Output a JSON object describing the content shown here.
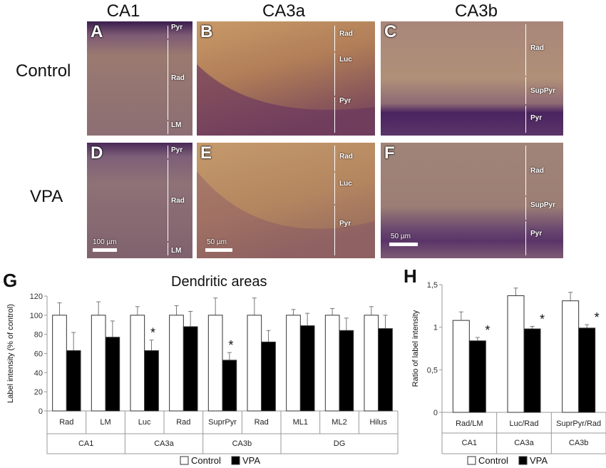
{
  "columns": [
    "CA1",
    "CA3a",
    "CA3b"
  ],
  "rows": [
    "Control",
    "VPA"
  ],
  "panels": [
    {
      "letter": "A",
      "layers": [
        "Pyr",
        "Rad",
        "LM"
      ]
    },
    {
      "letter": "B",
      "layers": [
        "Rad",
        "Luc",
        "Pyr"
      ]
    },
    {
      "letter": "C",
      "layers": [
        "Rad",
        "SupPyr",
        "Pyr"
      ]
    },
    {
      "letter": "D",
      "layers": [
        "Pyr",
        "Rad",
        "LM"
      ],
      "scale": "100 µm"
    },
    {
      "letter": "E",
      "layers": [
        "Rad",
        "Luc",
        "Pyr"
      ],
      "scale": "50 µm"
    },
    {
      "letter": "F",
      "layers": [
        "Rad",
        "SupPyr",
        "Pyr"
      ],
      "scale": "50 µm"
    }
  ],
  "colors": {
    "control": "#ffffff",
    "vpa": "#000000",
    "tissue": "#b98a63",
    "stain": "#5a2e6e"
  },
  "chart_data": [
    {
      "panel": "G",
      "type": "bar",
      "title": "Dendritic areas",
      "ylabel": "Label intensity (% of control)",
      "ylim": [
        0,
        120
      ],
      "yticks": [
        0,
        20,
        40,
        60,
        80,
        100,
        120
      ],
      "categories": [
        "Rad",
        "LM",
        "Luc",
        "Rad",
        "SuprPyr",
        "Rad",
        "ML1",
        "ML2",
        "Hilus"
      ],
      "groups": [
        {
          "label": "CA1",
          "span": 2
        },
        {
          "label": "CA3a",
          "span": 2
        },
        {
          "label": "CA3b",
          "span": 2
        },
        {
          "label": "DG",
          "span": 3
        }
      ],
      "series": [
        {
          "name": "Control",
          "values": [
            100,
            100,
            100,
            100,
            100,
            100,
            100,
            100,
            100
          ],
          "errors": [
            13,
            14,
            9,
            10,
            18,
            18,
            6,
            7,
            9
          ]
        },
        {
          "name": "VPA",
          "values": [
            63,
            77,
            63,
            88,
            53,
            72,
            89,
            84,
            86
          ],
          "errors": [
            19,
            17,
            11,
            16,
            8,
            12,
            13,
            13,
            14
          ]
        }
      ],
      "significant": [
        2,
        4
      ],
      "legend": "bottom"
    },
    {
      "panel": "H",
      "type": "bar",
      "ylabel": "Ratio of label intensity",
      "ylim": [
        0,
        1.5
      ],
      "yticks": [
        "0",
        "0,5",
        "1",
        "1,5"
      ],
      "categories": [
        "Rad/LM",
        "Luc/Rad",
        "SuprPyr/Rad"
      ],
      "groups": [
        {
          "label": "CA1",
          "span": 1
        },
        {
          "label": "CA3a",
          "span": 1
        },
        {
          "label": "CA3b",
          "span": 1
        }
      ],
      "series": [
        {
          "name": "Control",
          "values": [
            1.08,
            1.37,
            1.31
          ],
          "errors": [
            0.1,
            0.09,
            0.1
          ]
        },
        {
          "name": "VPA",
          "values": [
            0.84,
            0.98,
            0.99
          ],
          "errors": [
            0.04,
            0.03,
            0.04
          ]
        }
      ],
      "significant": [
        0,
        1,
        2
      ],
      "legend": "bottom"
    }
  ],
  "legend": {
    "control": "Control",
    "vpa": "VPA"
  },
  "sig_mark": "*"
}
